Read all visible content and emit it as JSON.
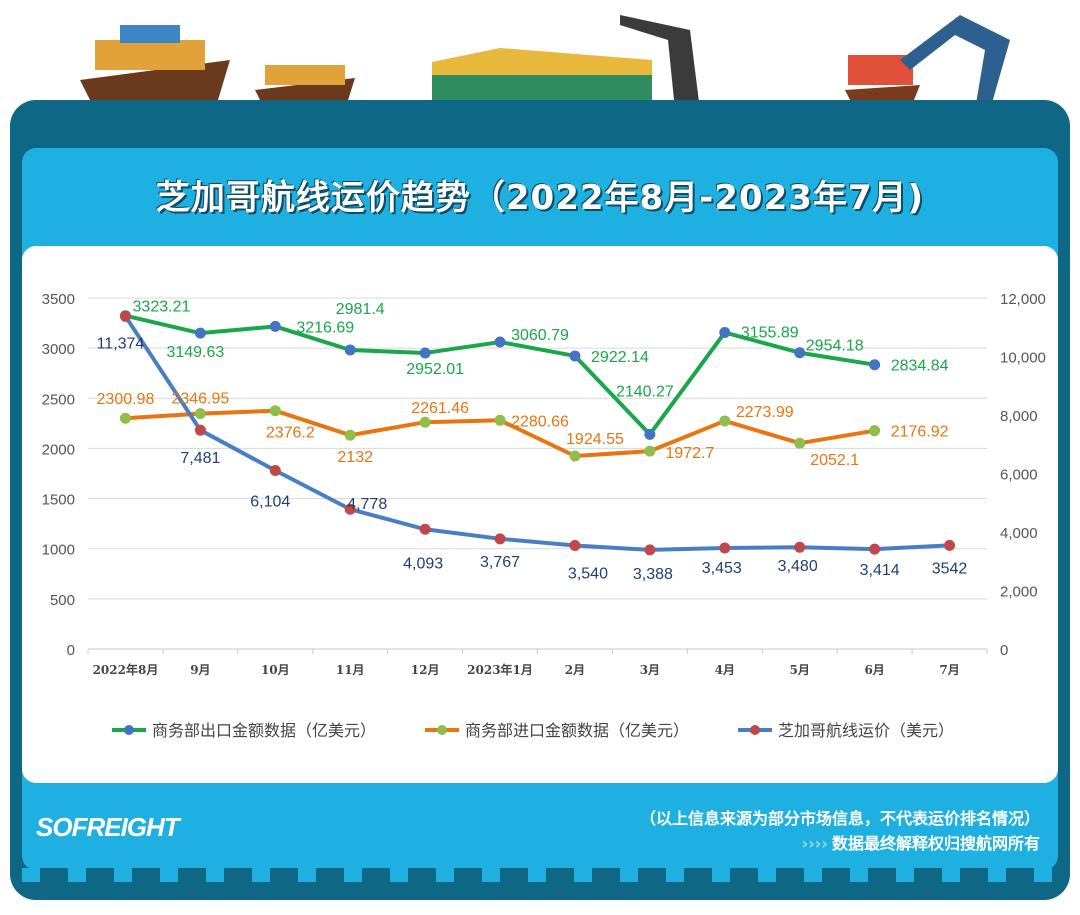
{
  "title": "芝加哥航线运价趋势（2022年8月-2023年7月)",
  "footer": {
    "logo": "SOFREIGHT",
    "note": "（以上信息来源为部分市场信息，不代表运价排名情况）",
    "arrows": "››››",
    "rights": "数据最终解释权归搜航网所有"
  },
  "chart_data": {
    "type": "line",
    "categories": [
      "2022年8月",
      "9月",
      "10月",
      "11月",
      "12月",
      "2023年1月",
      "2月",
      "3月",
      "4月",
      "5月",
      "6月",
      "7月"
    ],
    "y_left": {
      "range": [
        0,
        3500
      ],
      "ticks": [
        "0",
        "500",
        "1000",
        "1500",
        "2000",
        "2500",
        "3000",
        "3500"
      ]
    },
    "y_right": {
      "range": [
        0,
        12000
      ],
      "ticks": [
        "0",
        "2,000",
        "4,000",
        "6,000",
        "8,000",
        "10,000",
        "12,000"
      ]
    },
    "grid": true,
    "legend": "bottom",
    "series": [
      {
        "name": "商务部出口金额数据（亿美元）",
        "axis": "left",
        "line_color": "#1aa64a",
        "marker_color": "#4472c4",
        "label_color": "#1aa64a",
        "values": [
          3323.21,
          3149.63,
          3216.69,
          2981.4,
          2952.01,
          3060.79,
          2922.14,
          2140.27,
          3155.89,
          2954.18,
          2834.84,
          null
        ],
        "labels": [
          "3323.21",
          "3149.63",
          "3216.69",
          "2981.4",
          "2952.01",
          "3060.79",
          "2922.14",
          "2140.27",
          "3155.89",
          "2954.18",
          "2834.84",
          ""
        ]
      },
      {
        "name": "商务部进口金额数据（亿美元）",
        "axis": "left",
        "line_color": "#e87510",
        "marker_color": "#8fbf4a",
        "label_color": "#e87510",
        "values": [
          2300.98,
          2346.95,
          2376.2,
          2132,
          2261.46,
          2280.66,
          1924.55,
          1972.7,
          2273.99,
          2052.1,
          2176.92,
          null
        ],
        "labels": [
          "2300.98",
          "2346.95",
          "2376.2",
          "2132",
          "2261.46",
          "2280.66",
          "1924.55",
          "1972.7",
          "2273.99",
          "2052.1",
          "2176.92",
          ""
        ]
      },
      {
        "name": "芝加哥航线运价（美元）",
        "axis": "right",
        "line_color": "#4a7ec4",
        "marker_color": "#c0474a",
        "label_color": "#1f3f75",
        "values": [
          11374,
          7481,
          6104,
          4778,
          4093,
          3767,
          3540,
          3388,
          3453,
          3480,
          3414,
          3542
        ],
        "labels": [
          "11,374",
          "7,481",
          "6,104",
          "4,778",
          "4,093",
          "3,767",
          "3,540",
          "3,388",
          "3,453",
          "3,480",
          "3,414",
          "3542"
        ]
      }
    ]
  }
}
